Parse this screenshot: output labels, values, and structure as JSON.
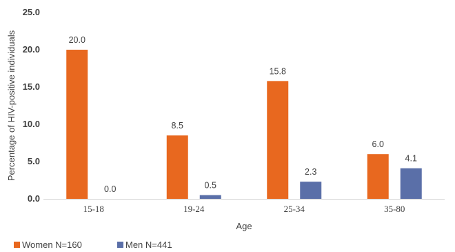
{
  "chart_data": {
    "type": "bar",
    "categories": [
      "15-18",
      "19-24",
      "25-34",
      "35-80"
    ],
    "series": [
      {
        "name": "Women N=160",
        "values": [
          20.0,
          8.5,
          15.8,
          6.0
        ],
        "color": "#E8681F"
      },
      {
        "name": "Men N=441",
        "values": [
          0.0,
          0.5,
          2.3,
          4.1
        ],
        "color": "#5A6FA8"
      }
    ],
    "data_labels": [
      [
        "20.0",
        "8.5",
        "15.8",
        "6.0"
      ],
      [
        "0.0",
        "0.5",
        "2.3",
        "4.1"
      ]
    ],
    "xlabel": "Age",
    "ylabel": "Percentage of HIV-positive individuals",
    "ylim": [
      0,
      25
    ],
    "yticks": [
      "0.0",
      "5.0",
      "10.0",
      "15.0",
      "20.0",
      "25.0"
    ],
    "grid": false,
    "legend": "bottom-left"
  }
}
